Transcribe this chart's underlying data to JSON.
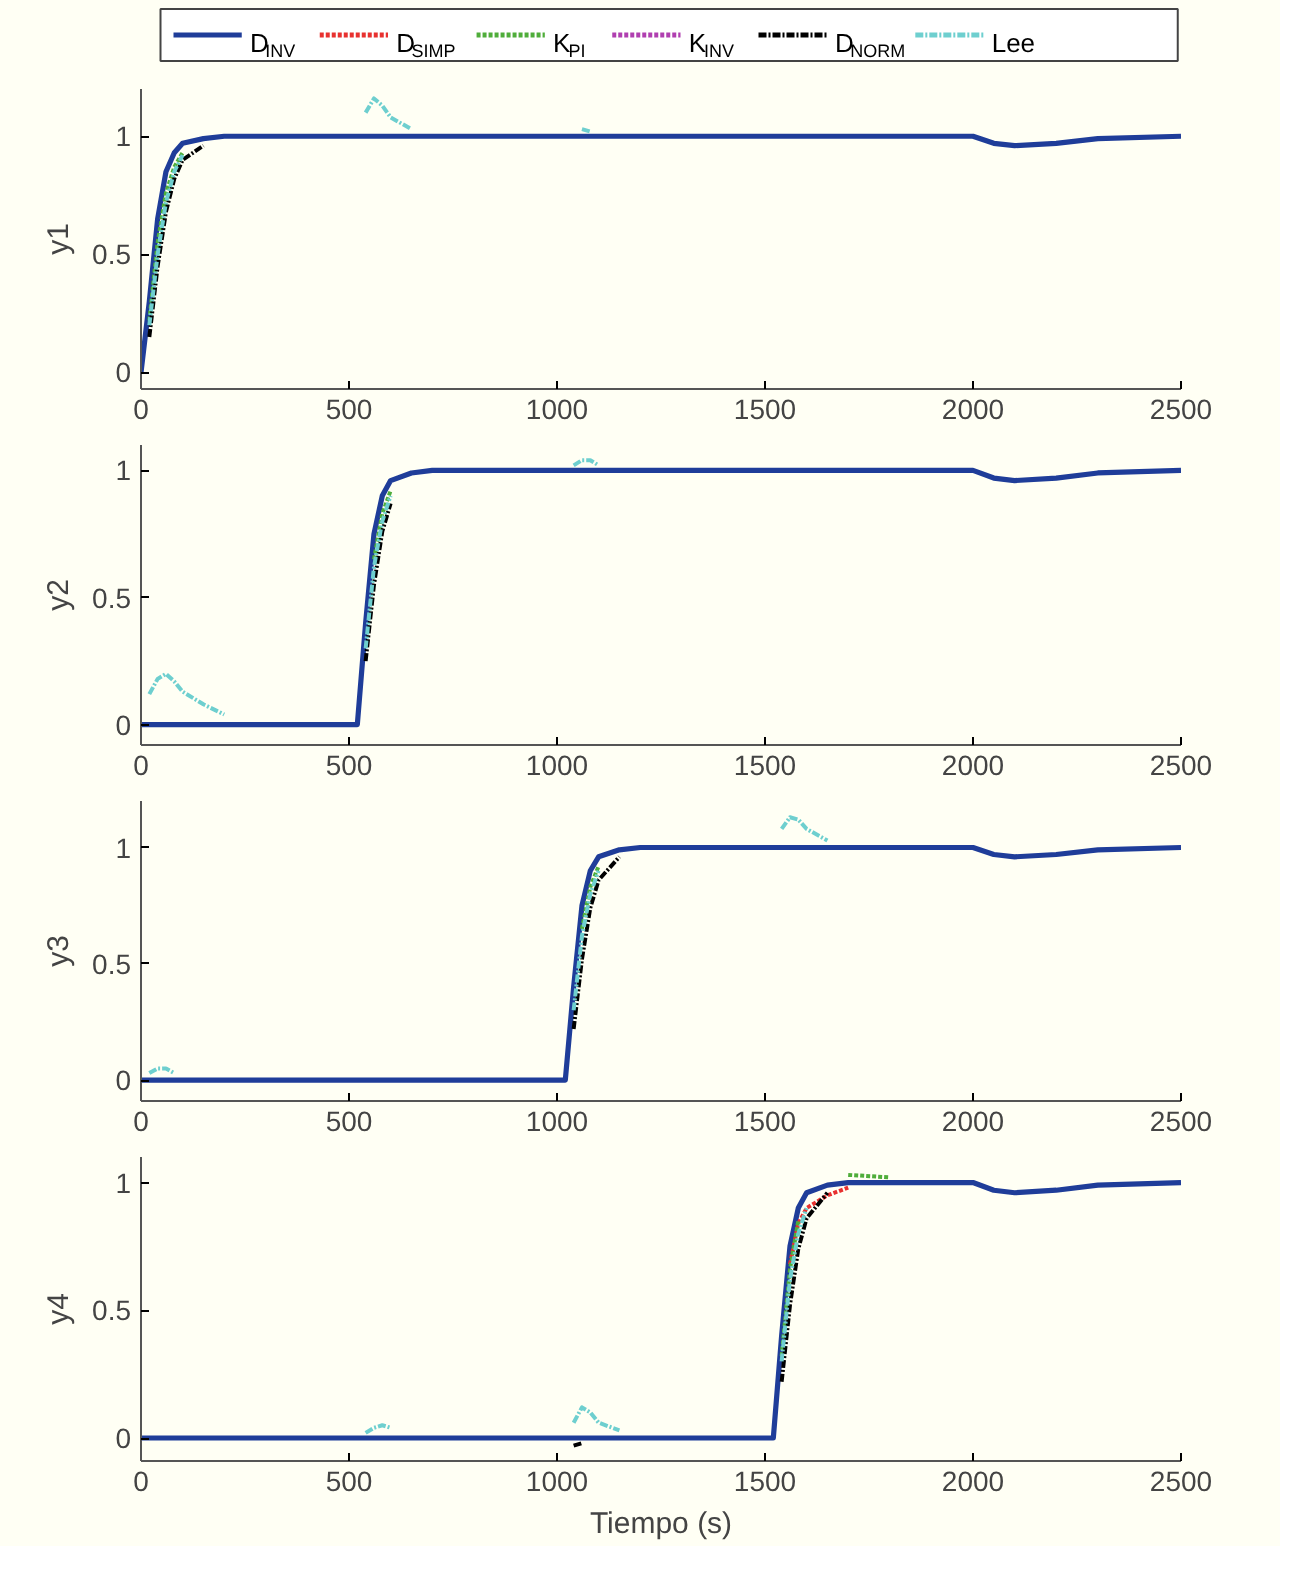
{
  "chart_data": [
    {
      "type": "line",
      "ylabel": "y1",
      "legend": "top",
      "xlim": [
        0,
        2500
      ],
      "ylim": [
        -0.07,
        1.2
      ],
      "xticks": [
        0,
        500,
        1000,
        1500,
        2000,
        2500
      ],
      "yticks": [
        0,
        0.5,
        1
      ],
      "grid": false,
      "x": [
        0,
        20,
        40,
        60,
        80,
        100,
        150,
        200,
        300,
        520,
        540,
        560,
        580,
        600,
        650,
        700,
        800,
        1020,
        1040,
        1060,
        1080,
        1100,
        1150,
        1200,
        1300,
        1520,
        1540,
        1560,
        1580,
        1600,
        1650,
        1700,
        1800,
        2000,
        2050,
        2100,
        2200,
        2300,
        2500
      ],
      "series": [
        {
          "name": "D$_{INV}$",
          "color": "#1f3d99",
          "line_style": "solid",
          "values": [
            0,
            0.3,
            0.65,
            0.85,
            0.93,
            0.97,
            0.99,
            1,
            1,
            1,
            1,
            1,
            1,
            1,
            1,
            1,
            1,
            1,
            1,
            1,
            1,
            1,
            1,
            1,
            1,
            1,
            1,
            1,
            1,
            1,
            1,
            1,
            1,
            1,
            0.97,
            0.96,
            0.97,
            0.99,
            1
          ]
        },
        {
          "name": "D$_{SIMP}$",
          "color": "#e8312f",
          "line_style": "dashed",
          "values": [
            null,
            null,
            null,
            null,
            null,
            null,
            null,
            null,
            null,
            null,
            null,
            null,
            null,
            null,
            null,
            null,
            null,
            null,
            null,
            null,
            null,
            null,
            null,
            null,
            null,
            null,
            null,
            null,
            null,
            null,
            null,
            null,
            null,
            null,
            null,
            null,
            null,
            null,
            null
          ]
        },
        {
          "name": "K$_{PI}$",
          "color": "#4fad3a",
          "line_style": "dashed",
          "values": [
            null,
            0.22,
            0.55,
            0.76,
            0.87,
            0.93,
            null,
            null,
            null,
            null,
            null,
            null,
            null,
            null,
            null,
            null,
            null,
            null,
            null,
            null,
            null,
            null,
            null,
            null,
            null,
            null,
            null,
            null,
            null,
            null,
            null,
            null,
            null,
            null,
            null,
            null,
            null,
            null,
            null
          ]
        },
        {
          "name": "K$_{INV}$",
          "color": "#b03fb0",
          "line_style": "dashed",
          "values": [
            null,
            null,
            null,
            null,
            null,
            null,
            null,
            null,
            null,
            null,
            null,
            null,
            null,
            null,
            null,
            null,
            null,
            null,
            null,
            null,
            null,
            null,
            null,
            null,
            null,
            null,
            null,
            null,
            null,
            null,
            null,
            null,
            null,
            null,
            null,
            null,
            null,
            null,
            null
          ]
        },
        {
          "name": "D$_{NORM}$",
          "color": "#000000",
          "line_style": "dashdot",
          "values": [
            null,
            0.15,
            0.45,
            0.68,
            0.82,
            0.9,
            0.96,
            null,
            null,
            null,
            null,
            null,
            null,
            null,
            null,
            null,
            null,
            null,
            null,
            null,
            null,
            null,
            null,
            null,
            null,
            null,
            null,
            null,
            null,
            null,
            null,
            null,
            null,
            null,
            null,
            null,
            null,
            null,
            null
          ]
        },
        {
          "name": "Lee",
          "color": "#6ecfcf",
          "line_style": "dashdot",
          "values": [
            null,
            0.2,
            0.5,
            0.72,
            0.85,
            0.92,
            null,
            null,
            null,
            null,
            1.1,
            1.16,
            1.13,
            1.08,
            1.03,
            null,
            null,
            null,
            null,
            1.03,
            1.02,
            null,
            null,
            null,
            null,
            null,
            null,
            null,
            null,
            null,
            null,
            null,
            null,
            null,
            null,
            null,
            null,
            null,
            null
          ]
        }
      ]
    },
    {
      "type": "line",
      "ylabel": "y2",
      "xlim": [
        0,
        2500
      ],
      "ylim": [
        -0.08,
        1.1
      ],
      "xticks": [
        0,
        500,
        1000,
        1500,
        2000,
        2500
      ],
      "yticks": [
        0,
        0.5,
        1
      ],
      "grid": false,
      "x": [
        0,
        20,
        40,
        60,
        80,
        100,
        150,
        200,
        300,
        520,
        540,
        560,
        580,
        600,
        650,
        700,
        800,
        1020,
        1040,
        1060,
        1080,
        1100,
        1150,
        1200,
        1300,
        1520,
        1540,
        1560,
        1580,
        1600,
        1650,
        1700,
        1800,
        2000,
        2050,
        2100,
        2200,
        2300,
        2500
      ],
      "series": [
        {
          "color": "#1f3d99",
          "line_style": "solid",
          "values": [
            0,
            0,
            0,
            0,
            0,
            0,
            0,
            0,
            0,
            0,
            0.4,
            0.75,
            0.9,
            0.96,
            0.99,
            1,
            1,
            1,
            1,
            1,
            1,
            1,
            1,
            1,
            1,
            1,
            1,
            1,
            1,
            1,
            1,
            1,
            1,
            1,
            0.97,
            0.96,
            0.97,
            0.99,
            1
          ]
        },
        {
          "color": "#e8312f",
          "line_style": "dashed",
          "values": [
            null,
            null,
            null,
            null,
            null,
            null,
            null,
            null,
            null,
            null,
            null,
            null,
            null,
            null,
            null,
            null,
            null,
            null,
            null,
            null,
            null,
            null,
            null,
            null,
            null,
            null,
            null,
            null,
            null,
            null,
            null,
            null,
            null,
            null,
            null,
            null,
            null,
            null,
            null
          ]
        },
        {
          "color": "#4fad3a",
          "line_style": "dashed",
          "values": [
            null,
            null,
            null,
            null,
            null,
            null,
            null,
            null,
            null,
            null,
            null,
            0.65,
            0.83,
            0.92,
            null,
            null,
            null,
            null,
            null,
            null,
            null,
            null,
            null,
            null,
            null,
            null,
            null,
            null,
            null,
            null,
            null,
            null,
            null,
            null,
            null,
            null,
            null,
            null,
            null
          ]
        },
        {
          "color": "#b03fb0",
          "line_style": "dashed",
          "values": [
            null,
            null,
            null,
            null,
            null,
            null,
            null,
            null,
            null,
            null,
            null,
            null,
            null,
            null,
            null,
            null,
            null,
            null,
            null,
            null,
            null,
            null,
            null,
            null,
            null,
            null,
            null,
            null,
            null,
            null,
            null,
            null,
            null,
            null,
            null,
            null,
            null,
            null,
            null
          ]
        },
        {
          "color": "#000000",
          "line_style": "dashdot",
          "values": [
            null,
            null,
            null,
            null,
            null,
            null,
            null,
            null,
            null,
            null,
            0.25,
            0.55,
            0.76,
            0.87,
            null,
            null,
            null,
            null,
            null,
            null,
            null,
            null,
            null,
            null,
            null,
            null,
            null,
            null,
            null,
            null,
            null,
            null,
            null,
            null,
            null,
            null,
            null,
            null,
            null
          ]
        },
        {
          "color": "#6ecfcf",
          "line_style": "dashdot",
          "values": [
            null,
            0.12,
            0.18,
            0.2,
            0.17,
            0.13,
            0.08,
            0.04,
            null,
            null,
            0.3,
            0.62,
            0.8,
            0.9,
            null,
            null,
            null,
            null,
            1.02,
            1.04,
            1.04,
            1.02,
            null,
            null,
            null,
            null,
            null,
            null,
            null,
            null,
            null,
            null,
            null,
            null,
            null,
            null,
            null,
            null,
            null
          ]
        }
      ]
    },
    {
      "type": "line",
      "ylabel": "y3",
      "xlim": [
        0,
        2500
      ],
      "ylim": [
        -0.09,
        1.2
      ],
      "xticks": [
        0,
        500,
        1000,
        1500,
        2000,
        2500
      ],
      "yticks": [
        0,
        0.5,
        1
      ],
      "grid": false,
      "x": [
        0,
        20,
        40,
        60,
        80,
        100,
        150,
        200,
        300,
        520,
        540,
        560,
        580,
        600,
        650,
        700,
        800,
        1020,
        1040,
        1060,
        1080,
        1100,
        1150,
        1200,
        1300,
        1520,
        1540,
        1560,
        1580,
        1600,
        1650,
        1700,
        1800,
        2000,
        2050,
        2100,
        2200,
        2300,
        2500
      ],
      "series": [
        {
          "color": "#1f3d99",
          "line_style": "solid",
          "values": [
            0,
            0,
            0,
            0,
            0,
            0,
            0,
            0,
            0,
            0,
            0,
            0,
            0,
            0,
            0,
            0,
            0,
            0,
            0.4,
            0.75,
            0.9,
            0.96,
            0.99,
            1,
            1,
            1,
            1,
            1,
            1,
            1,
            1,
            1,
            1,
            1,
            0.97,
            0.96,
            0.97,
            0.99,
            1
          ]
        },
        {
          "color": "#e8312f",
          "line_style": "dashed",
          "values": [
            null,
            null,
            null,
            null,
            null,
            null,
            null,
            null,
            null,
            null,
            null,
            null,
            null,
            null,
            null,
            null,
            null,
            null,
            null,
            null,
            null,
            null,
            null,
            null,
            null,
            null,
            null,
            null,
            null,
            null,
            null,
            null,
            null,
            null,
            null,
            null,
            null,
            null,
            null
          ]
        },
        {
          "color": "#4fad3a",
          "line_style": "dashed",
          "values": [
            null,
            null,
            null,
            null,
            null,
            null,
            null,
            null,
            null,
            null,
            null,
            null,
            null,
            null,
            null,
            null,
            null,
            null,
            null,
            0.65,
            0.83,
            0.92,
            null,
            null,
            null,
            null,
            null,
            null,
            null,
            null,
            null,
            null,
            null,
            null,
            null,
            null,
            null,
            null,
            null
          ]
        },
        {
          "color": "#b03fb0",
          "line_style": "dashed",
          "values": [
            null,
            null,
            null,
            null,
            null,
            null,
            null,
            null,
            null,
            null,
            null,
            null,
            null,
            null,
            null,
            null,
            null,
            null,
            null,
            null,
            null,
            null,
            null,
            null,
            null,
            null,
            null,
            null,
            null,
            null,
            null,
            null,
            null,
            null,
            null,
            null,
            null,
            null,
            null
          ]
        },
        {
          "color": "#000000",
          "line_style": "dashdot",
          "values": [
            null,
            null,
            null,
            null,
            null,
            null,
            null,
            null,
            null,
            null,
            null,
            null,
            null,
            null,
            null,
            null,
            null,
            null,
            0.22,
            0.52,
            0.74,
            0.86,
            0.96,
            null,
            null,
            null,
            null,
            null,
            null,
            null,
            null,
            null,
            null,
            null,
            null,
            null,
            null,
            null,
            null
          ]
        },
        {
          "color": "#6ecfcf",
          "line_style": "dashdot",
          "values": [
            null,
            0.03,
            0.05,
            0.05,
            0.03,
            null,
            null,
            null,
            null,
            null,
            null,
            null,
            null,
            null,
            null,
            null,
            null,
            null,
            0.3,
            0.62,
            0.8,
            0.9,
            null,
            null,
            null,
            null,
            1.08,
            1.13,
            1.12,
            1.08,
            1.03,
            null,
            null,
            null,
            null,
            null,
            null,
            null,
            null
          ]
        }
      ]
    },
    {
      "type": "line",
      "ylabel": "y4",
      "xlabel": "Tiempo (s)",
      "xlim": [
        0,
        2500
      ],
      "ylim": [
        -0.09,
        1.1
      ],
      "xticks": [
        0,
        500,
        1000,
        1500,
        2000,
        2500
      ],
      "yticks": [
        0,
        0.5,
        1
      ],
      "grid": false,
      "x": [
        0,
        20,
        40,
        60,
        80,
        100,
        150,
        200,
        300,
        520,
        540,
        560,
        580,
        600,
        650,
        700,
        800,
        1020,
        1040,
        1060,
        1080,
        1100,
        1150,
        1200,
        1300,
        1520,
        1540,
        1560,
        1580,
        1600,
        1650,
        1700,
        1800,
        2000,
        2050,
        2100,
        2200,
        2300,
        2500
      ],
      "series": [
        {
          "color": "#1f3d99",
          "line_style": "solid",
          "values": [
            0,
            0,
            0,
            0,
            0,
            0,
            0,
            0,
            0,
            0,
            0,
            0,
            0,
            0,
            0,
            0,
            0,
            0,
            0,
            0,
            0,
            0,
            0,
            0,
            0,
            0,
            0.4,
            0.75,
            0.9,
            0.96,
            0.99,
            1,
            1,
            1,
            0.97,
            0.96,
            0.97,
            0.99,
            1
          ]
        },
        {
          "color": "#e8312f",
          "line_style": "dashed",
          "values": [
            null,
            null,
            null,
            null,
            null,
            null,
            null,
            null,
            null,
            null,
            null,
            null,
            null,
            null,
            null,
            null,
            null,
            null,
            null,
            null,
            null,
            null,
            null,
            null,
            null,
            null,
            null,
            0.68,
            0.84,
            0.9,
            0.95,
            0.98,
            null,
            null,
            null,
            null,
            null,
            null,
            null
          ]
        },
        {
          "color": "#4fad3a",
          "line_style": "dashed",
          "values": [
            null,
            null,
            null,
            null,
            null,
            null,
            null,
            null,
            null,
            null,
            null,
            null,
            null,
            null,
            null,
            null,
            null,
            null,
            null,
            null,
            null,
            null,
            null,
            null,
            null,
            null,
            0.32,
            0.66,
            0.85,
            null,
            null,
            1.03,
            1.02,
            null,
            null,
            null,
            null,
            null,
            null
          ]
        },
        {
          "color": "#b03fb0",
          "line_style": "dashed",
          "values": [
            null,
            null,
            null,
            null,
            null,
            null,
            null,
            null,
            null,
            null,
            null,
            null,
            null,
            null,
            null,
            null,
            null,
            null,
            null,
            null,
            null,
            null,
            null,
            null,
            null,
            null,
            null,
            null,
            null,
            null,
            null,
            null,
            null,
            null,
            null,
            null,
            null,
            null,
            null
          ]
        },
        {
          "color": "#000000",
          "line_style": "dashdot",
          "values": [
            null,
            null,
            null,
            null,
            null,
            null,
            null,
            null,
            null,
            null,
            null,
            null,
            null,
            null,
            null,
            null,
            null,
            null,
            -0.03,
            -0.02,
            null,
            null,
            null,
            null,
            null,
            null,
            0.22,
            0.52,
            0.74,
            0.86,
            0.96,
            null,
            null,
            null,
            null,
            null,
            null,
            null,
            null
          ]
        },
        {
          "color": "#6ecfcf",
          "line_style": "dashdot",
          "values": [
            null,
            null,
            null,
            null,
            null,
            null,
            null,
            null,
            null,
            null,
            0.02,
            0.04,
            0.05,
            0.04,
            null,
            null,
            null,
            null,
            0.06,
            0.12,
            0.1,
            0.06,
            0.03,
            null,
            null,
            null,
            0.3,
            0.62,
            0.8,
            0.9,
            null,
            null,
            null,
            null,
            null,
            null,
            null,
            null,
            null
          ]
        }
      ]
    }
  ]
}
